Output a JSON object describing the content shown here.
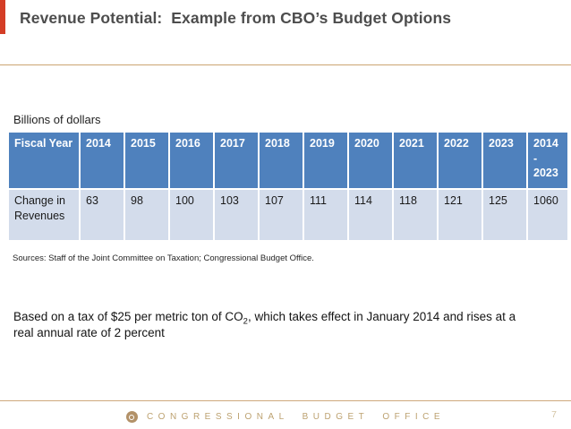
{
  "slide": {
    "title": "Revenue Potential:  Example from CBO’s Budget Options",
    "units_label": "Billions of dollars",
    "sources": "Sources: Staff of the Joint Committee on Taxation; Congressional Budget Office.",
    "body_text": {
      "prefix": "Based on a tax of $25 per metric ton of CO",
      "subscript": "2",
      "suffix": ", which takes effect in January 2014 and rises at a real annual rate of 2 percent"
    },
    "footer": {
      "organization": "CONGRESSIONAL BUDGET OFFICE",
      "page_number": "7"
    },
    "colors": {
      "accent_mark": "#d43d26",
      "title_text": "#4d4d4d",
      "rule_tan": "#cba571",
      "table_header_bg": "#4f81bd",
      "table_header_text": "#ffffff",
      "table_row_bg": "#d3dceb",
      "footer_text": "#bda271"
    }
  },
  "chart_data": {
    "type": "table",
    "title": "Billions of dollars",
    "columns": [
      "Fiscal Year",
      "2014",
      "2015",
      "2016",
      "2017",
      "2018",
      "2019",
      "2020",
      "2021",
      "2022",
      "2023",
      "2014 - 2023"
    ],
    "rows": [
      {
        "label": "Change in Revenues",
        "values": [
          63,
          98,
          100,
          103,
          107,
          111,
          114,
          118,
          121,
          125,
          1060
        ]
      }
    ]
  }
}
